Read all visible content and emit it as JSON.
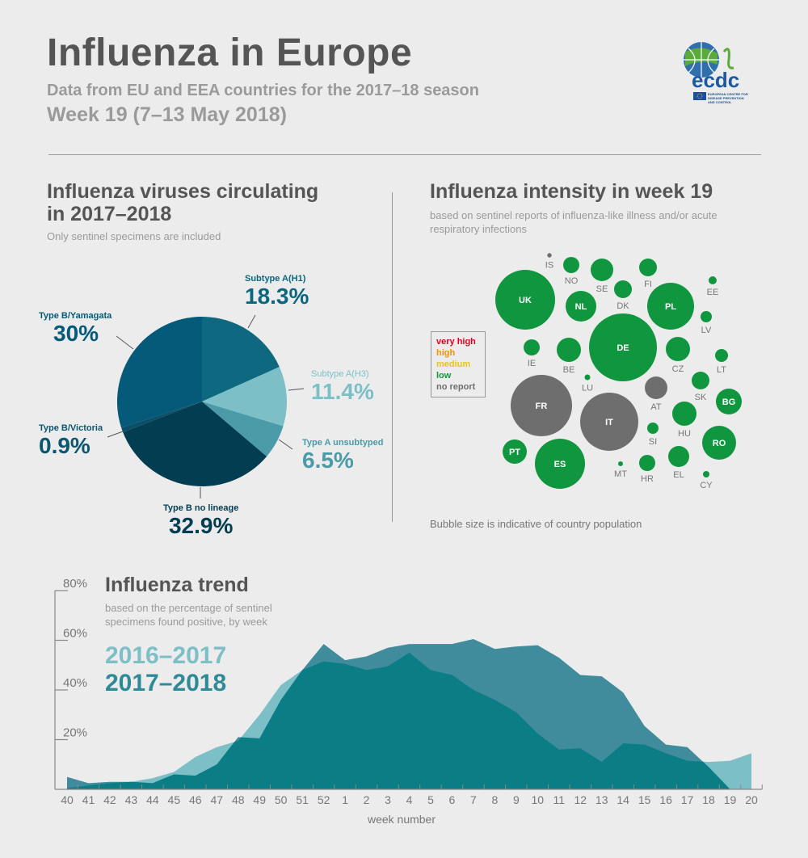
{
  "header": {
    "title": "Influenza in Europe",
    "subtitle": "Data from EU and EEA countries for the 2017–18 season",
    "week": "Week 19 (7–13 May 2018)"
  },
  "logo": {
    "wordmark": "ecdc",
    "tagline": "EUROPEAN CENTRE FOR DISEASE PREVENTION AND CONTROL"
  },
  "viruses": {
    "title_line1": "Influenza viruses circulating",
    "title_line2": "in 2017–2018",
    "note": "Only sentinel specimens are included"
  },
  "intensity": {
    "title": "Influenza intensity in week 19",
    "note": "based on sentinel reports of influenza-like illness and/or acute respiratory infections",
    "footnote": "Bubble size is indicative of country population",
    "legend": [
      {
        "label": "very high",
        "color": "#e2001a"
      },
      {
        "label": "high",
        "color": "#f39200"
      },
      {
        "label": "medium",
        "color": "#e6c619"
      },
      {
        "label": "low",
        "color": "#119640"
      },
      {
        "label": "no report",
        "color": "#6e6e6e"
      }
    ]
  },
  "trend": {
    "title": "Influenza trend",
    "note_line1": "based on the percentage of sentinel",
    "note_line2": "specimens found positive, by week"
  },
  "chart_data": [
    {
      "type": "pie",
      "title": "Influenza viruses circulating in 2017–2018",
      "slices": [
        {
          "label": "Subtype A(H1)",
          "value": 18.3,
          "display": "18.3%",
          "color": "#0d6880"
        },
        {
          "label": "Subtype A(H3)",
          "value": 11.4,
          "display": "11.4%",
          "color": "#7dbfc7"
        },
        {
          "label": "Type A unsubtyped",
          "value": 6.5,
          "display": "6.5%",
          "color": "#4a9aa8"
        },
        {
          "label": "Type B no lineage",
          "value": 32.9,
          "display": "32.9%",
          "color": "#033d52"
        },
        {
          "label": "Type B/Victoria",
          "value": 0.9,
          "display": "0.9%",
          "color": "#0b4f66"
        },
        {
          "label": "Type B/Yamagata",
          "value": 30,
          "display": "30%",
          "color": "#045a78"
        }
      ]
    },
    {
      "type": "scatter",
      "title": "Influenza intensity in week 19",
      "countries": [
        {
          "code": "IS",
          "level": "no report"
        },
        {
          "code": "NO",
          "level": "low"
        },
        {
          "code": "SE",
          "level": "low"
        },
        {
          "code": "FI",
          "level": "low"
        },
        {
          "code": "DK",
          "level": "low"
        },
        {
          "code": "EE",
          "level": "low"
        },
        {
          "code": "UK",
          "level": "low"
        },
        {
          "code": "NL",
          "level": "low"
        },
        {
          "code": "PL",
          "level": "low"
        },
        {
          "code": "LV",
          "level": "low"
        },
        {
          "code": "DE",
          "level": "low"
        },
        {
          "code": "IE",
          "level": "low"
        },
        {
          "code": "BE",
          "level": "low"
        },
        {
          "code": "CZ",
          "level": "low"
        },
        {
          "code": "LT",
          "level": "low"
        },
        {
          "code": "LU",
          "level": "low"
        },
        {
          "code": "AT",
          "level": "no report"
        },
        {
          "code": "SK",
          "level": "low"
        },
        {
          "code": "BG",
          "level": "low"
        },
        {
          "code": "FR",
          "level": "no report"
        },
        {
          "code": "IT",
          "level": "no report"
        },
        {
          "code": "HU",
          "level": "low"
        },
        {
          "code": "SI",
          "level": "low"
        },
        {
          "code": "RO",
          "level": "low"
        },
        {
          "code": "PT",
          "level": "low"
        },
        {
          "code": "ES",
          "level": "low"
        },
        {
          "code": "MT",
          "level": "low"
        },
        {
          "code": "HR",
          "level": "low"
        },
        {
          "code": "EL",
          "level": "low"
        },
        {
          "code": "CY",
          "level": "low"
        }
      ]
    },
    {
      "type": "area",
      "title": "Influenza trend",
      "xlabel": "week number",
      "ylim": [
        0,
        80
      ],
      "yticks": [
        "20%",
        "40%",
        "60%",
        "80%"
      ],
      "ytick_values": [
        20,
        40,
        60,
        80
      ],
      "categories": [
        "40",
        "41",
        "42",
        "43",
        "44",
        "45",
        "46",
        "47",
        "48",
        "49",
        "50",
        "51",
        "52",
        "1",
        "2",
        "3",
        "4",
        "5",
        "6",
        "7",
        "8",
        "9",
        "10",
        "11",
        "12",
        "13",
        "14",
        "15",
        "16",
        "17",
        "18",
        "19",
        "20"
      ],
      "series": [
        {
          "name": "2016–2017",
          "color": "#7dbfc6",
          "values": [
            0.5,
            1.5,
            2.5,
            3,
            4.5,
            7,
            13,
            17,
            19.5,
            30,
            42,
            48,
            51.5,
            50.5,
            48,
            49.5,
            55,
            48,
            46,
            40,
            36,
            31,
            22.5,
            16,
            16.5,
            11,
            18.5,
            18,
            14.5,
            11.5,
            11,
            11.5,
            14.5
          ]
        },
        {
          "name": "2017–2018",
          "color": "#418c9c",
          "values": [
            5,
            2.5,
            3,
            3,
            2.5,
            6,
            5.5,
            10,
            21,
            20.5,
            36,
            48,
            58.5,
            52,
            53.5,
            57,
            58.5,
            58.5,
            58.5,
            60.5,
            56.5,
            57.5,
            58,
            53,
            46,
            45.5,
            39,
            25.5,
            18,
            17,
            9,
            0,
            null
          ]
        }
      ],
      "overlap_color": "#0b7d84"
    }
  ]
}
